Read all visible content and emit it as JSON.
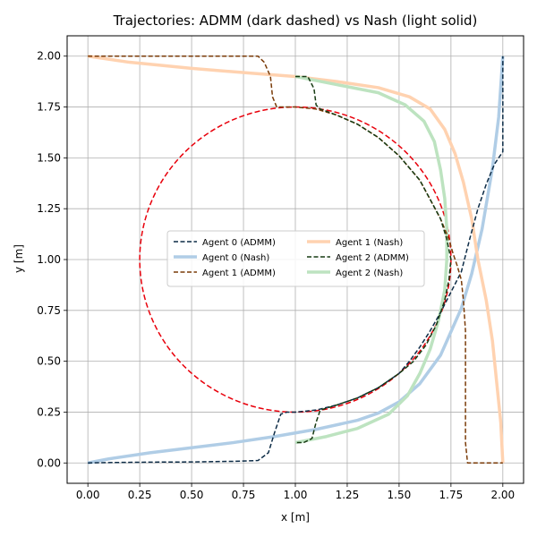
{
  "chart_data": {
    "type": "line",
    "title": "Trajectories: ADMM (dark dashed) vs Nash (light solid)",
    "xlabel": "x [m]",
    "ylabel": "y [m]",
    "xlim": [
      -0.1,
      2.1
    ],
    "ylim": [
      -0.1,
      2.1
    ],
    "xticks": [
      0.0,
      0.25,
      0.5,
      0.75,
      1.0,
      1.25,
      1.5,
      1.75,
      2.0
    ],
    "yticks": [
      0.0,
      0.25,
      0.5,
      0.75,
      1.0,
      1.25,
      1.5,
      1.75,
      2.0
    ],
    "xtick_labels": [
      "0.00",
      "0.25",
      "0.50",
      "0.75",
      "1.00",
      "1.25",
      "1.50",
      "1.75",
      "2.00"
    ],
    "ytick_labels": [
      "0.00",
      "0.25",
      "0.50",
      "0.75",
      "1.00",
      "1.25",
      "1.50",
      "1.75",
      "2.00"
    ],
    "grid": true,
    "legend_position": "center",
    "legend_columns": 2,
    "obstacle": {
      "center": [
        1.0,
        1.0
      ],
      "radius": 0.75,
      "color": "#e8000b",
      "dashed": true
    },
    "series": [
      {
        "name": "Agent 0 (ADMM)",
        "color": "#0d2c47",
        "style": "dashed",
        "width": 1.5,
        "points": [
          [
            0.0,
            0.0
          ],
          [
            0.1,
            0.002
          ],
          [
            0.3,
            0.004
          ],
          [
            0.5,
            0.005
          ],
          [
            0.7,
            0.008
          ],
          [
            0.82,
            0.012
          ],
          [
            0.87,
            0.05
          ],
          [
            0.9,
            0.15
          ],
          [
            0.93,
            0.24
          ],
          [
            0.96,
            0.25
          ],
          [
            1.0,
            0.25
          ],
          [
            1.05,
            0.255
          ],
          [
            1.1,
            0.26
          ],
          [
            1.2,
            0.285
          ],
          [
            1.3,
            0.32
          ],
          [
            1.4,
            0.37
          ],
          [
            1.5,
            0.44
          ],
          [
            1.55,
            0.5
          ],
          [
            1.6,
            0.57
          ],
          [
            1.65,
            0.65
          ],
          [
            1.7,
            0.74
          ],
          [
            1.75,
            0.84
          ],
          [
            1.8,
            0.94
          ],
          [
            1.84,
            1.1
          ],
          [
            1.88,
            1.25
          ],
          [
            1.92,
            1.37
          ],
          [
            1.96,
            1.47
          ],
          [
            2.0,
            1.53
          ],
          [
            2.0,
            1.7
          ],
          [
            2.0,
            2.0
          ]
        ]
      },
      {
        "name": "Agent 0 (Nash)",
        "color": "#b0cde6",
        "style": "solid",
        "width": 3.5,
        "points": [
          [
            0.0,
            0.0
          ],
          [
            0.1,
            0.02
          ],
          [
            0.3,
            0.05
          ],
          [
            0.5,
            0.075
          ],
          [
            0.7,
            0.1
          ],
          [
            0.9,
            0.13
          ],
          [
            1.1,
            0.165
          ],
          [
            1.3,
            0.21
          ],
          [
            1.4,
            0.245
          ],
          [
            1.5,
            0.3
          ],
          [
            1.6,
            0.39
          ],
          [
            1.7,
            0.53
          ],
          [
            1.8,
            0.76
          ],
          [
            1.85,
            0.93
          ],
          [
            1.9,
            1.15
          ],
          [
            1.95,
            1.45
          ],
          [
            1.98,
            1.7
          ],
          [
            2.0,
            2.0
          ]
        ]
      },
      {
        "name": "Agent 1 (ADMM)",
        "color": "#7a3b08",
        "style": "dashed",
        "width": 1.5,
        "points": [
          [
            0.0,
            2.0
          ],
          [
            0.4,
            2.0
          ],
          [
            0.82,
            2.0
          ],
          [
            0.85,
            1.97
          ],
          [
            0.88,
            1.9
          ],
          [
            0.89,
            1.8
          ],
          [
            0.91,
            1.75
          ],
          [
            1.0,
            1.75
          ],
          [
            1.1,
            1.74
          ],
          [
            1.2,
            1.71
          ],
          [
            1.3,
            1.665
          ],
          [
            1.4,
            1.6
          ],
          [
            1.5,
            1.51
          ],
          [
            1.6,
            1.39
          ],
          [
            1.7,
            1.2
          ],
          [
            1.74,
            1.1
          ],
          [
            1.76,
            1.03
          ],
          [
            1.78,
            0.97
          ],
          [
            1.8,
            0.9
          ],
          [
            1.81,
            0.8
          ],
          [
            1.82,
            0.65
          ],
          [
            1.82,
            0.4
          ],
          [
            1.82,
            0.1
          ],
          [
            1.83,
            0.0
          ],
          [
            1.9,
            0.0
          ],
          [
            2.0,
            0.0
          ]
        ]
      },
      {
        "name": "Agent 1 (Nash)",
        "color": "#ffd2b0",
        "style": "solid",
        "width": 3.5,
        "points": [
          [
            0.0,
            2.0
          ],
          [
            0.2,
            1.97
          ],
          [
            0.5,
            1.94
          ],
          [
            0.8,
            1.915
          ],
          [
            1.0,
            1.9
          ],
          [
            1.2,
            1.875
          ],
          [
            1.4,
            1.845
          ],
          [
            1.55,
            1.8
          ],
          [
            1.65,
            1.74
          ],
          [
            1.72,
            1.64
          ],
          [
            1.77,
            1.52
          ],
          [
            1.81,
            1.38
          ],
          [
            1.85,
            1.2
          ],
          [
            1.88,
            1.0
          ],
          [
            1.92,
            0.8
          ],
          [
            1.95,
            0.6
          ],
          [
            1.97,
            0.4
          ],
          [
            1.99,
            0.2
          ],
          [
            2.0,
            0.0
          ]
        ]
      },
      {
        "name": "Agent 2 (ADMM)",
        "color": "#163a12",
        "style": "dashed",
        "width": 1.5,
        "points": [
          [
            1.0,
            1.9
          ],
          [
            1.06,
            1.9
          ],
          [
            1.09,
            1.84
          ],
          [
            1.1,
            1.76
          ],
          [
            1.12,
            1.74
          ],
          [
            1.2,
            1.71
          ],
          [
            1.3,
            1.665
          ],
          [
            1.4,
            1.6
          ],
          [
            1.5,
            1.51
          ],
          [
            1.6,
            1.39
          ],
          [
            1.7,
            1.2
          ],
          [
            1.73,
            1.1
          ],
          [
            1.75,
            1.0
          ],
          [
            1.74,
            0.9
          ],
          [
            1.72,
            0.8
          ],
          [
            1.68,
            0.68
          ],
          [
            1.63,
            0.58
          ],
          [
            1.57,
            0.5
          ],
          [
            1.5,
            0.44
          ],
          [
            1.4,
            0.37
          ],
          [
            1.3,
            0.32
          ],
          [
            1.2,
            0.285
          ],
          [
            1.12,
            0.26
          ],
          [
            1.1,
            0.2
          ],
          [
            1.08,
            0.12
          ],
          [
            1.04,
            0.1
          ],
          [
            1.0,
            0.1
          ]
        ]
      },
      {
        "name": "Agent 2 (Nash)",
        "color": "#bde3c0",
        "style": "solid",
        "width": 3.5,
        "points": [
          [
            1.0,
            1.9
          ],
          [
            1.2,
            1.86
          ],
          [
            1.4,
            1.82
          ],
          [
            1.53,
            1.76
          ],
          [
            1.62,
            1.68
          ],
          [
            1.67,
            1.58
          ],
          [
            1.7,
            1.44
          ],
          [
            1.72,
            1.3
          ],
          [
            1.73,
            1.15
          ],
          [
            1.73,
            1.0
          ],
          [
            1.72,
            0.85
          ],
          [
            1.69,
            0.7
          ],
          [
            1.65,
            0.56
          ],
          [
            1.6,
            0.44
          ],
          [
            1.54,
            0.33
          ],
          [
            1.45,
            0.24
          ],
          [
            1.3,
            0.17
          ],
          [
            1.15,
            0.13
          ],
          [
            1.0,
            0.1
          ]
        ]
      }
    ]
  }
}
